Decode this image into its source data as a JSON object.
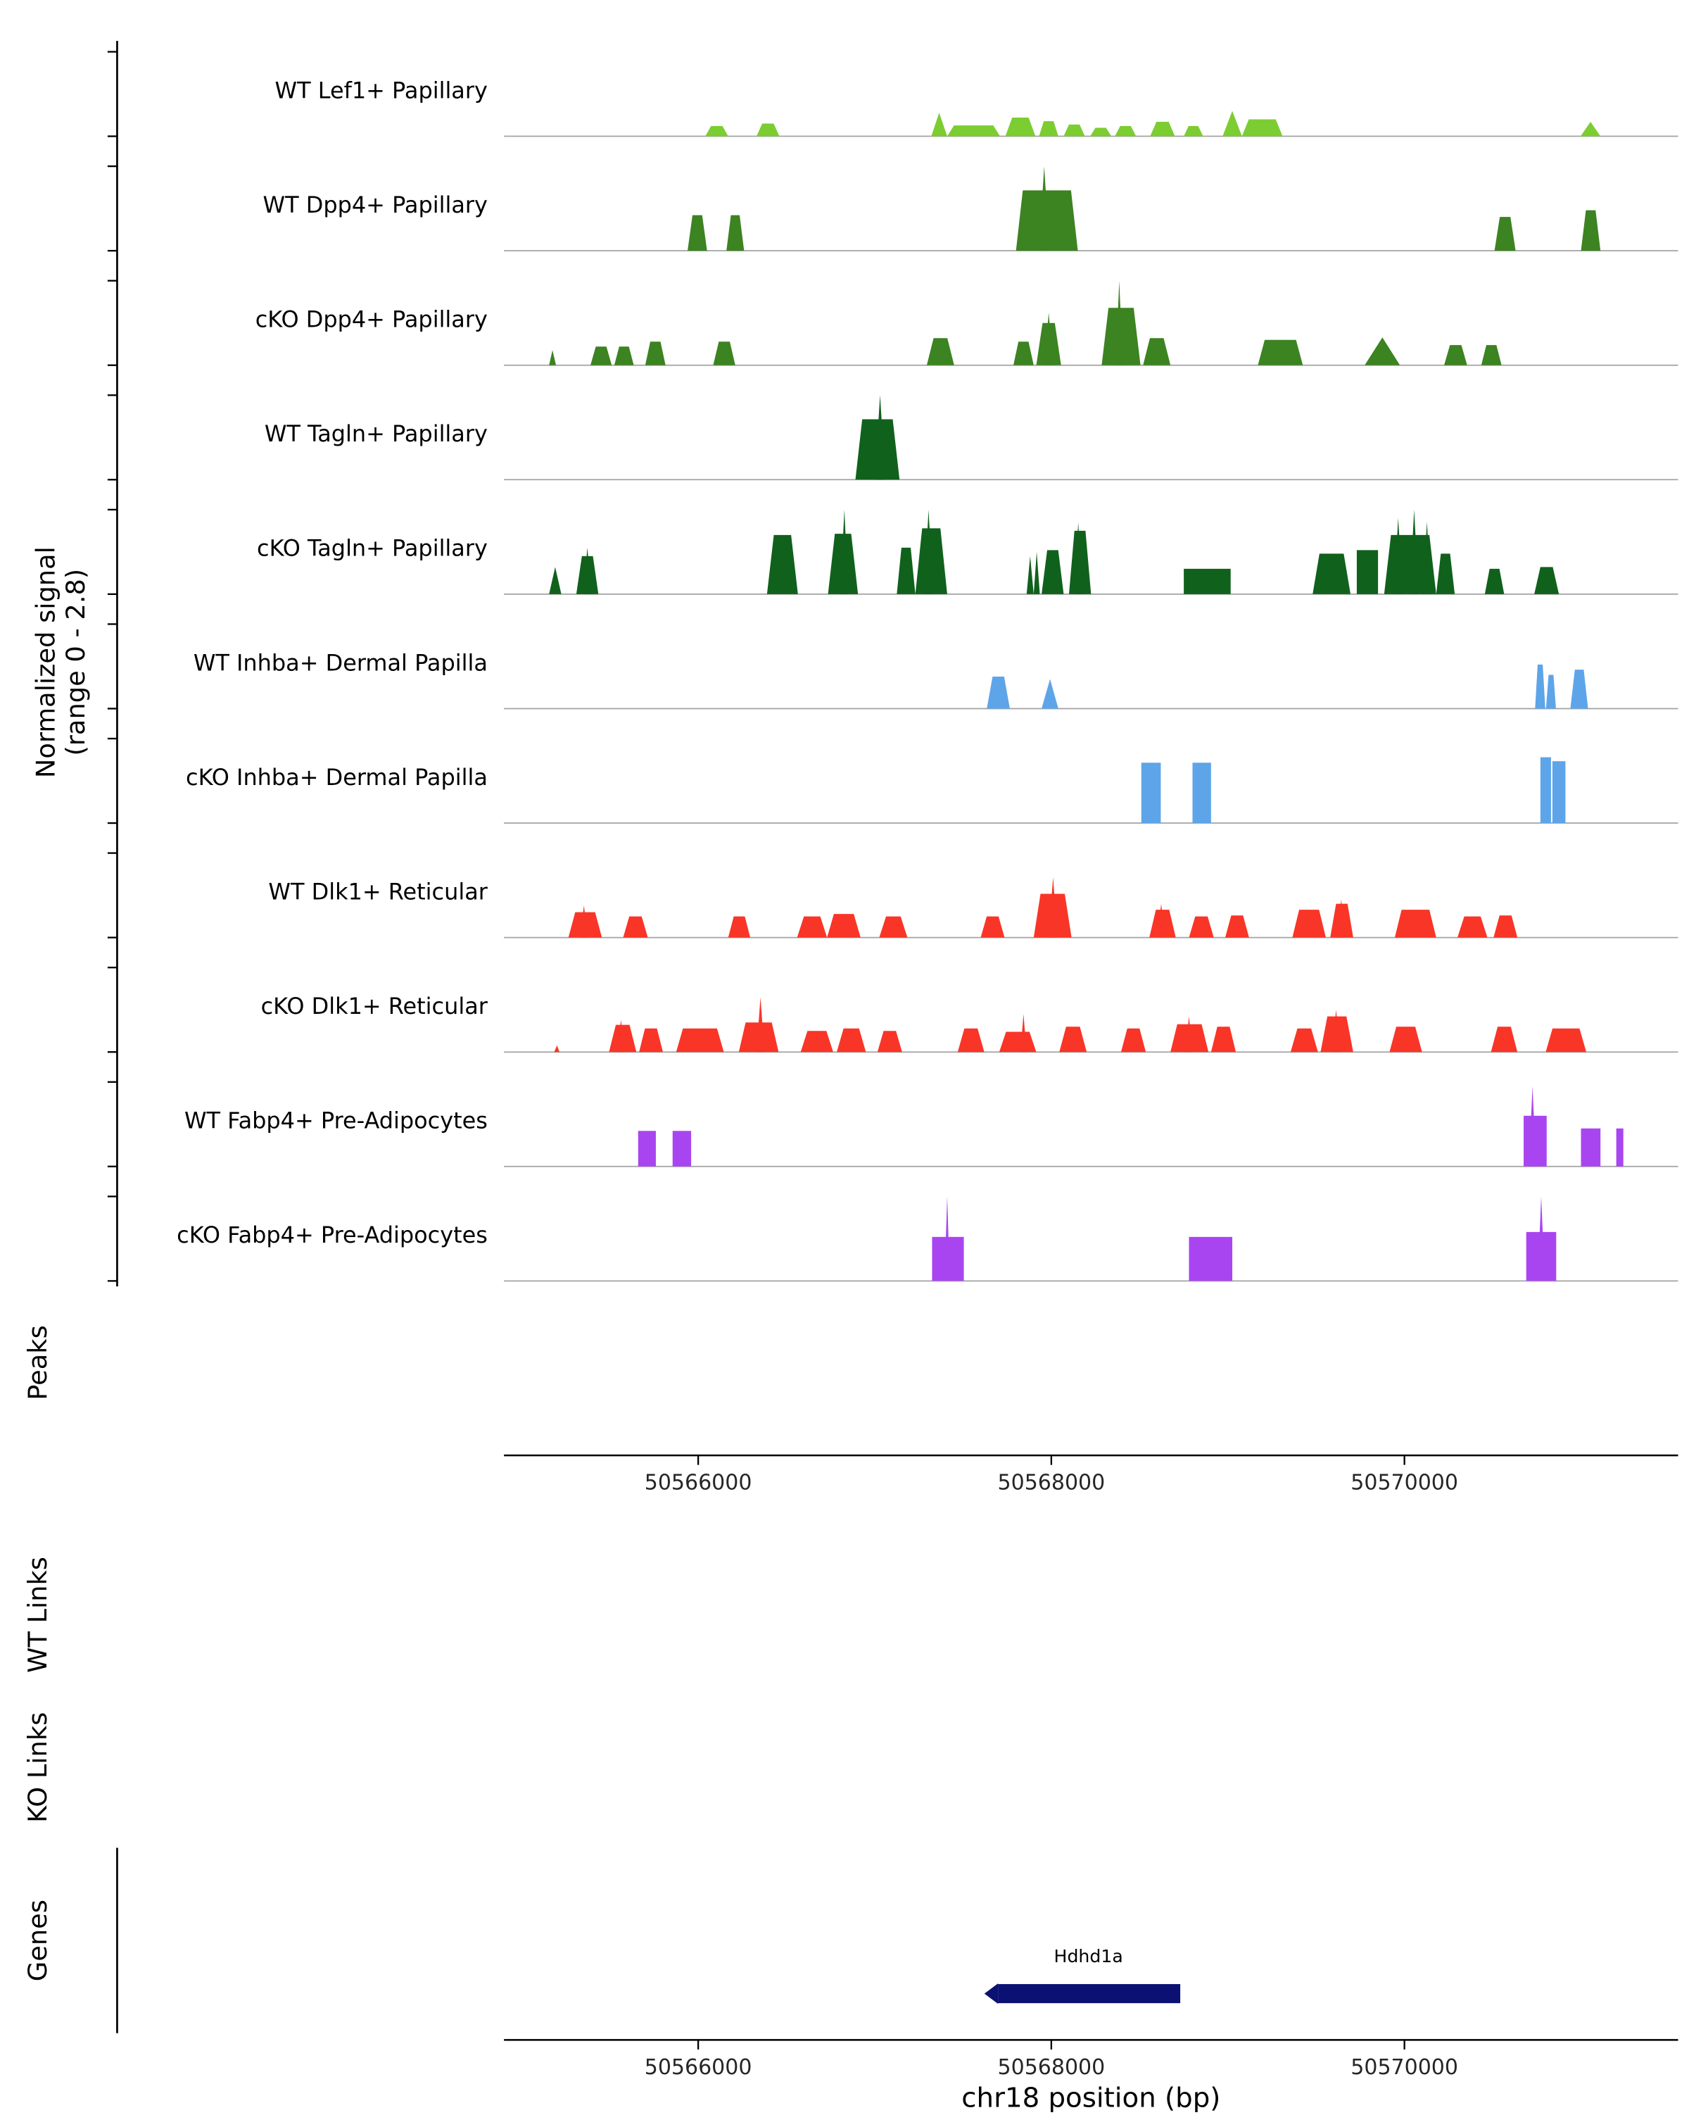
{
  "figure": {
    "y_axis_title": [
      "Normalized signal",
      "(range 0 - 2.8)"
    ],
    "sections": {
      "peaks_label": "Peaks",
      "wt_links_label": "WT Links",
      "ko_links_label": "KO Links",
      "genes_label": "Genes"
    },
    "x_axis": {
      "label": "chr18 position (bp)",
      "tick_values": [
        50566000,
        50568000,
        50570000
      ],
      "tick_labels": [
        "50566000",
        "50568000",
        "50570000"
      ]
    }
  },
  "chart_data": {
    "type": "area",
    "x_unit": "bp",
    "chromosome": "chr18",
    "x_range_bp": [
      50564900,
      50571550
    ],
    "y_range": [
      0,
      2.8
    ],
    "x_ticks": [
      50566000,
      50568000,
      50570000
    ],
    "tracks": [
      {
        "label": "WT Lef1+ Papillary",
        "color": "#7ccd31",
        "segments": [
          [
            50566040,
            50566170,
            0.34,
            "p"
          ],
          [
            50566330,
            50566460,
            0.42,
            "p"
          ],
          [
            50567320,
            50567410,
            0.78,
            "t"
          ],
          [
            50567410,
            50567710,
            0.36,
            "p"
          ],
          [
            50567740,
            50567910,
            0.62,
            "p"
          ],
          [
            50567930,
            50568040,
            0.5,
            "p"
          ],
          [
            50568070,
            50568190,
            0.39,
            "p"
          ],
          [
            50568220,
            50568340,
            0.28,
            "p"
          ],
          [
            50568360,
            50568480,
            0.34,
            "p"
          ],
          [
            50568560,
            50568700,
            0.48,
            "p"
          ],
          [
            50568750,
            50568860,
            0.34,
            "p"
          ],
          [
            50568970,
            50569080,
            0.84,
            "t"
          ],
          [
            50569080,
            50569310,
            0.56,
            "p"
          ],
          [
            50570998,
            50571110,
            0.48,
            "t"
          ]
        ]
      },
      {
        "label": "WT Dpp4+ Papillary",
        "color": "#3c8321",
        "segments": [
          [
            50565940,
            50566050,
            1.18,
            "p"
          ],
          [
            50566160,
            50566260,
            1.18,
            "p"
          ],
          [
            50567800,
            50568150,
            2.0,
            "p"
          ],
          [
            50567930,
            50567990,
            2.8,
            "t"
          ],
          [
            50570510,
            50570630,
            1.12,
            "p"
          ],
          [
            50571000,
            50571110,
            1.34,
            "p"
          ]
        ]
      },
      {
        "label": "cKO Dpp4+ Papillary",
        "color": "#3c8321",
        "segments": [
          [
            50565155,
            50565195,
            0.5,
            "t"
          ],
          [
            50565390,
            50565510,
            0.62,
            "p"
          ],
          [
            50565525,
            50565635,
            0.62,
            "p"
          ],
          [
            50565700,
            50565815,
            0.78,
            "p"
          ],
          [
            50566085,
            50566210,
            0.78,
            "p"
          ],
          [
            50567295,
            50567450,
            0.9,
            "p"
          ],
          [
            50567785,
            50567900,
            0.78,
            "p"
          ],
          [
            50567915,
            50568055,
            1.4,
            "p"
          ],
          [
            50567960,
            50568010,
            1.74,
            "t"
          ],
          [
            50568285,
            50568505,
            1.9,
            "p"
          ],
          [
            50568365,
            50568405,
            2.8,
            "t"
          ],
          [
            50568520,
            50568675,
            0.9,
            "p"
          ],
          [
            50569170,
            50569425,
            0.84,
            "p"
          ],
          [
            50569775,
            50569975,
            0.92,
            "t"
          ],
          [
            50570225,
            50570355,
            0.67,
            "p"
          ],
          [
            50570435,
            50570550,
            0.67,
            "p"
          ]
        ]
      },
      {
        "label": "WT Tagln+ Papillary",
        "color": "#10611c",
        "segments": [
          [
            50566890,
            50567140,
            2.0,
            "p"
          ],
          [
            50567000,
            50567060,
            2.8,
            "t"
          ]
        ]
      },
      {
        "label": "cKO Tagln+ Papillary",
        "color": "#10611c",
        "segments": [
          [
            50565155,
            50565225,
            0.9,
            "t"
          ],
          [
            50565310,
            50565435,
            1.26,
            "p"
          ],
          [
            50565350,
            50565395,
            1.54,
            "t"
          ],
          [
            50566390,
            50566565,
            1.96,
            "p"
          ],
          [
            50566735,
            50566905,
            2.0,
            "p"
          ],
          [
            50566805,
            50566850,
            2.8,
            "t"
          ],
          [
            50567125,
            50567230,
            1.54,
            "p"
          ],
          [
            50567230,
            50567410,
            2.18,
            "p"
          ],
          [
            50567280,
            50567330,
            2.8,
            "t"
          ],
          [
            50567860,
            50567900,
            1.26,
            "t"
          ],
          [
            50567900,
            50567935,
            1.4,
            "t"
          ],
          [
            50567945,
            50568070,
            1.46,
            "p"
          ],
          [
            50568100,
            50568225,
            2.1,
            "p"
          ],
          [
            50568130,
            50568175,
            2.38,
            "t"
          ],
          [
            50568750,
            50569015,
            0.84,
            "r"
          ],
          [
            50569480,
            50569695,
            1.34,
            "p"
          ],
          [
            50569730,
            50569850,
            1.46,
            "r"
          ],
          [
            50569885,
            50570180,
            1.96,
            "p"
          ],
          [
            50569940,
            50569990,
            2.52,
            "t"
          ],
          [
            50570030,
            50570080,
            2.8,
            "t"
          ],
          [
            50570105,
            50570150,
            2.4,
            "t"
          ],
          [
            50570180,
            50570285,
            1.34,
            "p"
          ],
          [
            50570455,
            50570565,
            0.84,
            "p"
          ],
          [
            50570735,
            50570875,
            0.9,
            "p"
          ]
        ]
      },
      {
        "label": "WT Inhba+ Dermal Papilla",
        "color": "#5da5e8",
        "segments": [
          [
            50567635,
            50567765,
            1.06,
            "p"
          ],
          [
            50567945,
            50568040,
            0.98,
            "t"
          ],
          [
            50570740,
            50570798,
            1.46,
            "p"
          ],
          [
            50570802,
            50570858,
            1.12,
            "p"
          ],
          [
            50570940,
            50571040,
            1.29,
            "p"
          ]
        ]
      },
      {
        "label": "cKO Inhba+ Dermal Papilla",
        "color": "#5da5e8",
        "segments": [
          [
            50568510,
            50568620,
            2.0,
            "r"
          ],
          [
            50568800,
            50568905,
            2.0,
            "r"
          ],
          [
            50570770,
            50570830,
            2.18,
            "r"
          ],
          [
            50570838,
            50570912,
            2.05,
            "r"
          ]
        ]
      },
      {
        "label": "WT Dlk1+ Reticular",
        "color": "#f93527",
        "segments": [
          [
            50565265,
            50565455,
            0.84,
            "p"
          ],
          [
            50565330,
            50565375,
            1.06,
            "t"
          ],
          [
            50565575,
            50565715,
            0.7,
            "p"
          ],
          [
            50566170,
            50566295,
            0.7,
            "p"
          ],
          [
            50566560,
            50566730,
            0.7,
            "p"
          ],
          [
            50566730,
            50566920,
            0.78,
            "p"
          ],
          [
            50567025,
            50567185,
            0.7,
            "p"
          ],
          [
            50567600,
            50567735,
            0.7,
            "p"
          ],
          [
            50567900,
            50568115,
            1.45,
            "p"
          ],
          [
            50567985,
            50568035,
            2.0,
            "t"
          ],
          [
            50568555,
            50568705,
            0.92,
            "p"
          ],
          [
            50568600,
            50568645,
            1.12,
            "t"
          ],
          [
            50568780,
            50568920,
            0.7,
            "p"
          ],
          [
            50568985,
            50569120,
            0.73,
            "p"
          ],
          [
            50569365,
            50569555,
            0.92,
            "p"
          ],
          [
            50569580,
            50569710,
            1.12,
            "p"
          ],
          [
            50569620,
            50569665,
            1.26,
            "t"
          ],
          [
            50569945,
            50570180,
            0.92,
            "p"
          ],
          [
            50570300,
            50570470,
            0.7,
            "p"
          ],
          [
            50570505,
            50570640,
            0.73,
            "p"
          ]
        ]
      },
      {
        "label": "cKO Dlk1+ Reticular",
        "color": "#f93527",
        "segments": [
          [
            50565185,
            50565215,
            0.22,
            "t"
          ],
          [
            50565495,
            50565650,
            0.9,
            "p"
          ],
          [
            50565540,
            50565585,
            1.06,
            "t"
          ],
          [
            50565665,
            50565800,
            0.78,
            "p"
          ],
          [
            50565875,
            50566145,
            0.78,
            "p"
          ],
          [
            50566230,
            50566455,
            0.98,
            "p"
          ],
          [
            50566330,
            50566375,
            1.82,
            "t"
          ],
          [
            50566580,
            50566765,
            0.7,
            "p"
          ],
          [
            50566785,
            50566950,
            0.78,
            "p"
          ],
          [
            50567015,
            50567155,
            0.7,
            "p"
          ],
          [
            50567470,
            50567620,
            0.78,
            "p"
          ],
          [
            50567705,
            50567915,
            0.67,
            "p"
          ],
          [
            50567825,
            50567860,
            1.26,
            "t"
          ],
          [
            50568045,
            50568200,
            0.84,
            "p"
          ],
          [
            50568395,
            50568535,
            0.78,
            "p"
          ],
          [
            50568675,
            50568890,
            0.92,
            "p"
          ],
          [
            50568760,
            50568800,
            1.18,
            "t"
          ],
          [
            50568905,
            50569045,
            0.84,
            "p"
          ],
          [
            50569355,
            50569510,
            0.78,
            "p"
          ],
          [
            50569525,
            50569710,
            1.18,
            "p"
          ],
          [
            50569590,
            50569635,
            1.4,
            "t"
          ],
          [
            50569915,
            50570100,
            0.84,
            "p"
          ],
          [
            50570490,
            50570640,
            0.84,
            "p"
          ],
          [
            50570800,
            50571030,
            0.78,
            "p"
          ]
        ]
      },
      {
        "label": "WT Fabp4+ Pre-Adipocytes",
        "color": "#a845f0",
        "segments": [
          [
            50565660,
            50565760,
            1.18,
            "r"
          ],
          [
            50565855,
            50565960,
            1.18,
            "r"
          ],
          [
            50570675,
            50570805,
            1.68,
            "r"
          ],
          [
            50570705,
            50570745,
            2.66,
            "t"
          ],
          [
            50571000,
            50571110,
            1.26,
            "r"
          ],
          [
            50571200,
            50571240,
            1.26,
            "r"
          ]
        ]
      },
      {
        "label": "cKO Fabp4+ Pre-Adipocytes",
        "color": "#a845f0",
        "segments": [
          [
            50567325,
            50567505,
            1.46,
            "r"
          ],
          [
            50567395,
            50567425,
            2.8,
            "t"
          ],
          [
            50568780,
            50569025,
            1.46,
            "r"
          ],
          [
            50570690,
            50570860,
            1.62,
            "r"
          ],
          [
            50570755,
            50570795,
            2.8,
            "t"
          ]
        ]
      }
    ],
    "genes": [
      {
        "name": "Hdhd1a",
        "start_bp": 50567690,
        "end_bp": 50568730,
        "strand": "-",
        "color": "#0a1172"
      }
    ]
  }
}
